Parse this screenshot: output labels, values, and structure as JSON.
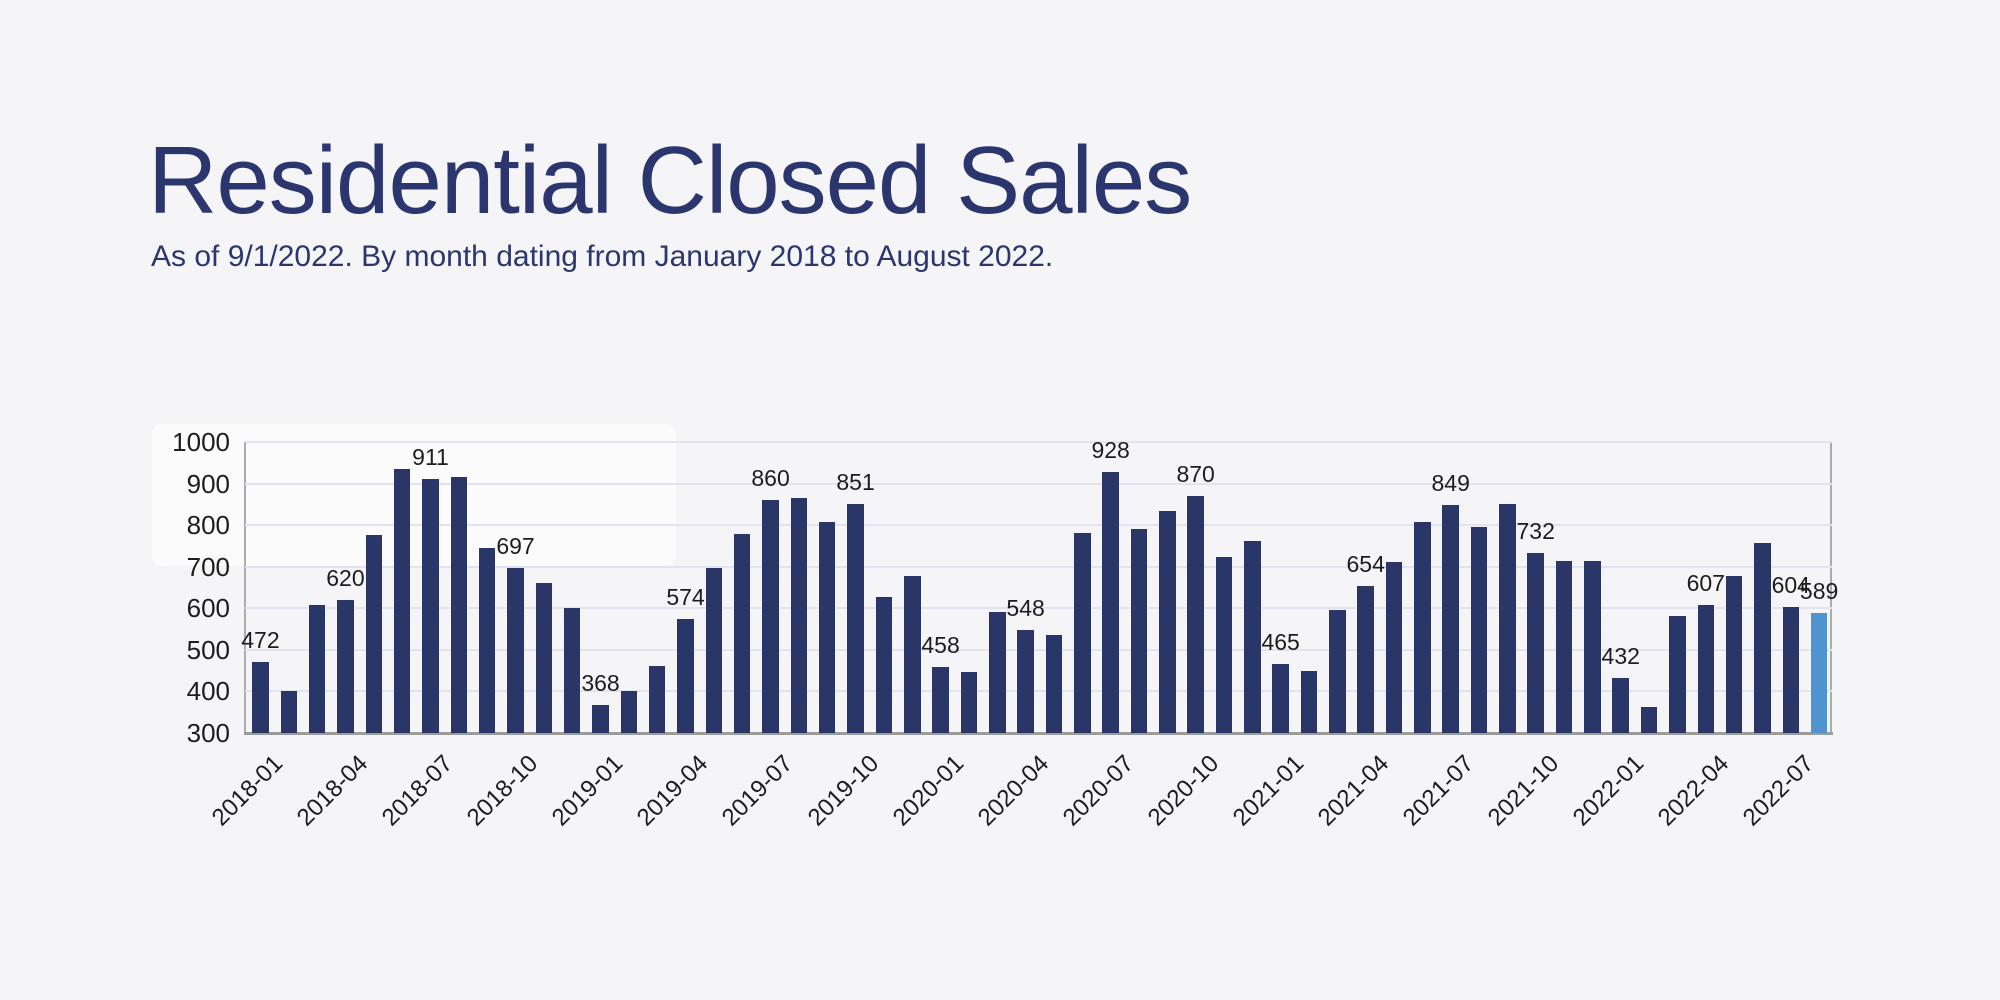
{
  "header": {
    "title": "Residential Closed Sales",
    "subtitle": "As of 9/1/2022. By month dating from January 2018 to August 2022."
  },
  "colors": {
    "background": "#f5f5f7",
    "title_text": "#2b366f",
    "bar_color": "#2a3568",
    "highlight_color": "#4e94cf",
    "gridline": "#e0e4f0",
    "baseline": "#9b9b9b",
    "axis_text": "#1d1d1d"
  },
  "chart_data": {
    "type": "bar",
    "title": "Residential Closed Sales",
    "subtitle": "As of 9/1/2022. By month dating from January 2018 to August 2022.",
    "x": [
      "2018-01",
      "2018-02",
      "2018-03",
      "2018-04",
      "2018-05",
      "2018-06",
      "2018-07",
      "2018-08",
      "2018-09",
      "2018-10",
      "2018-11",
      "2018-12",
      "2019-01",
      "2019-02",
      "2019-03",
      "2019-04",
      "2019-05",
      "2019-06",
      "2019-07",
      "2019-08",
      "2019-09",
      "2019-10",
      "2019-11",
      "2019-12",
      "2020-01",
      "2020-02",
      "2020-03",
      "2020-04",
      "2020-05",
      "2020-06",
      "2020-07",
      "2020-08",
      "2020-09",
      "2020-10",
      "2020-11",
      "2020-12",
      "2021-01",
      "2021-02",
      "2021-03",
      "2021-04",
      "2021-05",
      "2021-06",
      "2021-07",
      "2021-08",
      "2021-09",
      "2021-10",
      "2021-11",
      "2021-12",
      "2022-01",
      "2022-02",
      "2022-03",
      "2022-04",
      "2022-05",
      "2022-06",
      "2022-07",
      "2022-08"
    ],
    "values": [
      472,
      402,
      609,
      620,
      777,
      936,
      911,
      916,
      746,
      697,
      662,
      601,
      368,
      401,
      461,
      574,
      698,
      778,
      860,
      866,
      808,
      851,
      628,
      678,
      458,
      447,
      592,
      548,
      536,
      780,
      928,
      791,
      835,
      870,
      723,
      763,
      465,
      448,
      596,
      654,
      712,
      807,
      849,
      795,
      850,
      732,
      714,
      714,
      432,
      363,
      582,
      607,
      678,
      758,
      604,
      589
    ],
    "value_labels": [
      {
        "x": "2018-01",
        "value": 472
      },
      {
        "x": "2018-04",
        "value": 620
      },
      {
        "x": "2018-07",
        "value": 911
      },
      {
        "x": "2018-10",
        "value": 697
      },
      {
        "x": "2019-01",
        "value": 368
      },
      {
        "x": "2019-04",
        "value": 574
      },
      {
        "x": "2019-07",
        "value": 860
      },
      {
        "x": "2019-10",
        "value": 851
      },
      {
        "x": "2020-01",
        "value": 458
      },
      {
        "x": "2020-04",
        "value": 548
      },
      {
        "x": "2020-07",
        "value": 928
      },
      {
        "x": "2020-10",
        "value": 870
      },
      {
        "x": "2021-01",
        "value": 465
      },
      {
        "x": "2021-04",
        "value": 654
      },
      {
        "x": "2021-07",
        "value": 849
      },
      {
        "x": "2021-10",
        "value": 732
      },
      {
        "x": "2022-01",
        "value": 432
      },
      {
        "x": "2022-04",
        "value": 607
      },
      {
        "x": "2022-07",
        "value": 604
      },
      {
        "x": "2022-08",
        "value": 589
      }
    ],
    "xticks": [
      "2018-01",
      "2018-04",
      "2018-07",
      "2018-10",
      "2019-01",
      "2019-04",
      "2019-07",
      "2019-10",
      "2020-01",
      "2020-04",
      "2020-07",
      "2020-10",
      "2021-01",
      "2021-04",
      "2021-07",
      "2021-10",
      "2022-01",
      "2022-04",
      "2022-07"
    ],
    "yticks": [
      300,
      400,
      500,
      600,
      700,
      800,
      900,
      1000
    ],
    "ylim": [
      300,
      1000
    ],
    "xlabel": "",
    "ylabel": "",
    "grid": true,
    "legend": "none",
    "bar_color": "#2a3568",
    "highlight_color": "#4e94cf",
    "highlight_x": "2022-08"
  }
}
